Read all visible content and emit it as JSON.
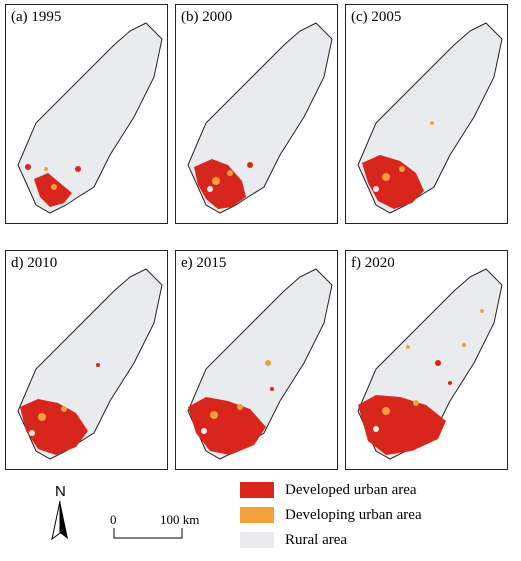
{
  "panels": [
    {
      "label": "(a) 1995"
    },
    {
      "label": "(b) 2000"
    },
    {
      "label": "(c) 2005"
    },
    {
      "label": "d) 2010"
    },
    {
      "label": "e) 2015"
    },
    {
      "label": "f) 2020"
    }
  ],
  "legend": {
    "items": [
      {
        "label": "Developed urban area",
        "color": "#d9261c"
      },
      {
        "label": "Developing urban area",
        "color": "#f2a13a"
      },
      {
        "label": "Rural area",
        "color": "#e9ebee"
      }
    ]
  },
  "north_arrow": {
    "letter": "N"
  },
  "scale_bar": {
    "start_label": "0",
    "end_label": "100 km"
  }
}
